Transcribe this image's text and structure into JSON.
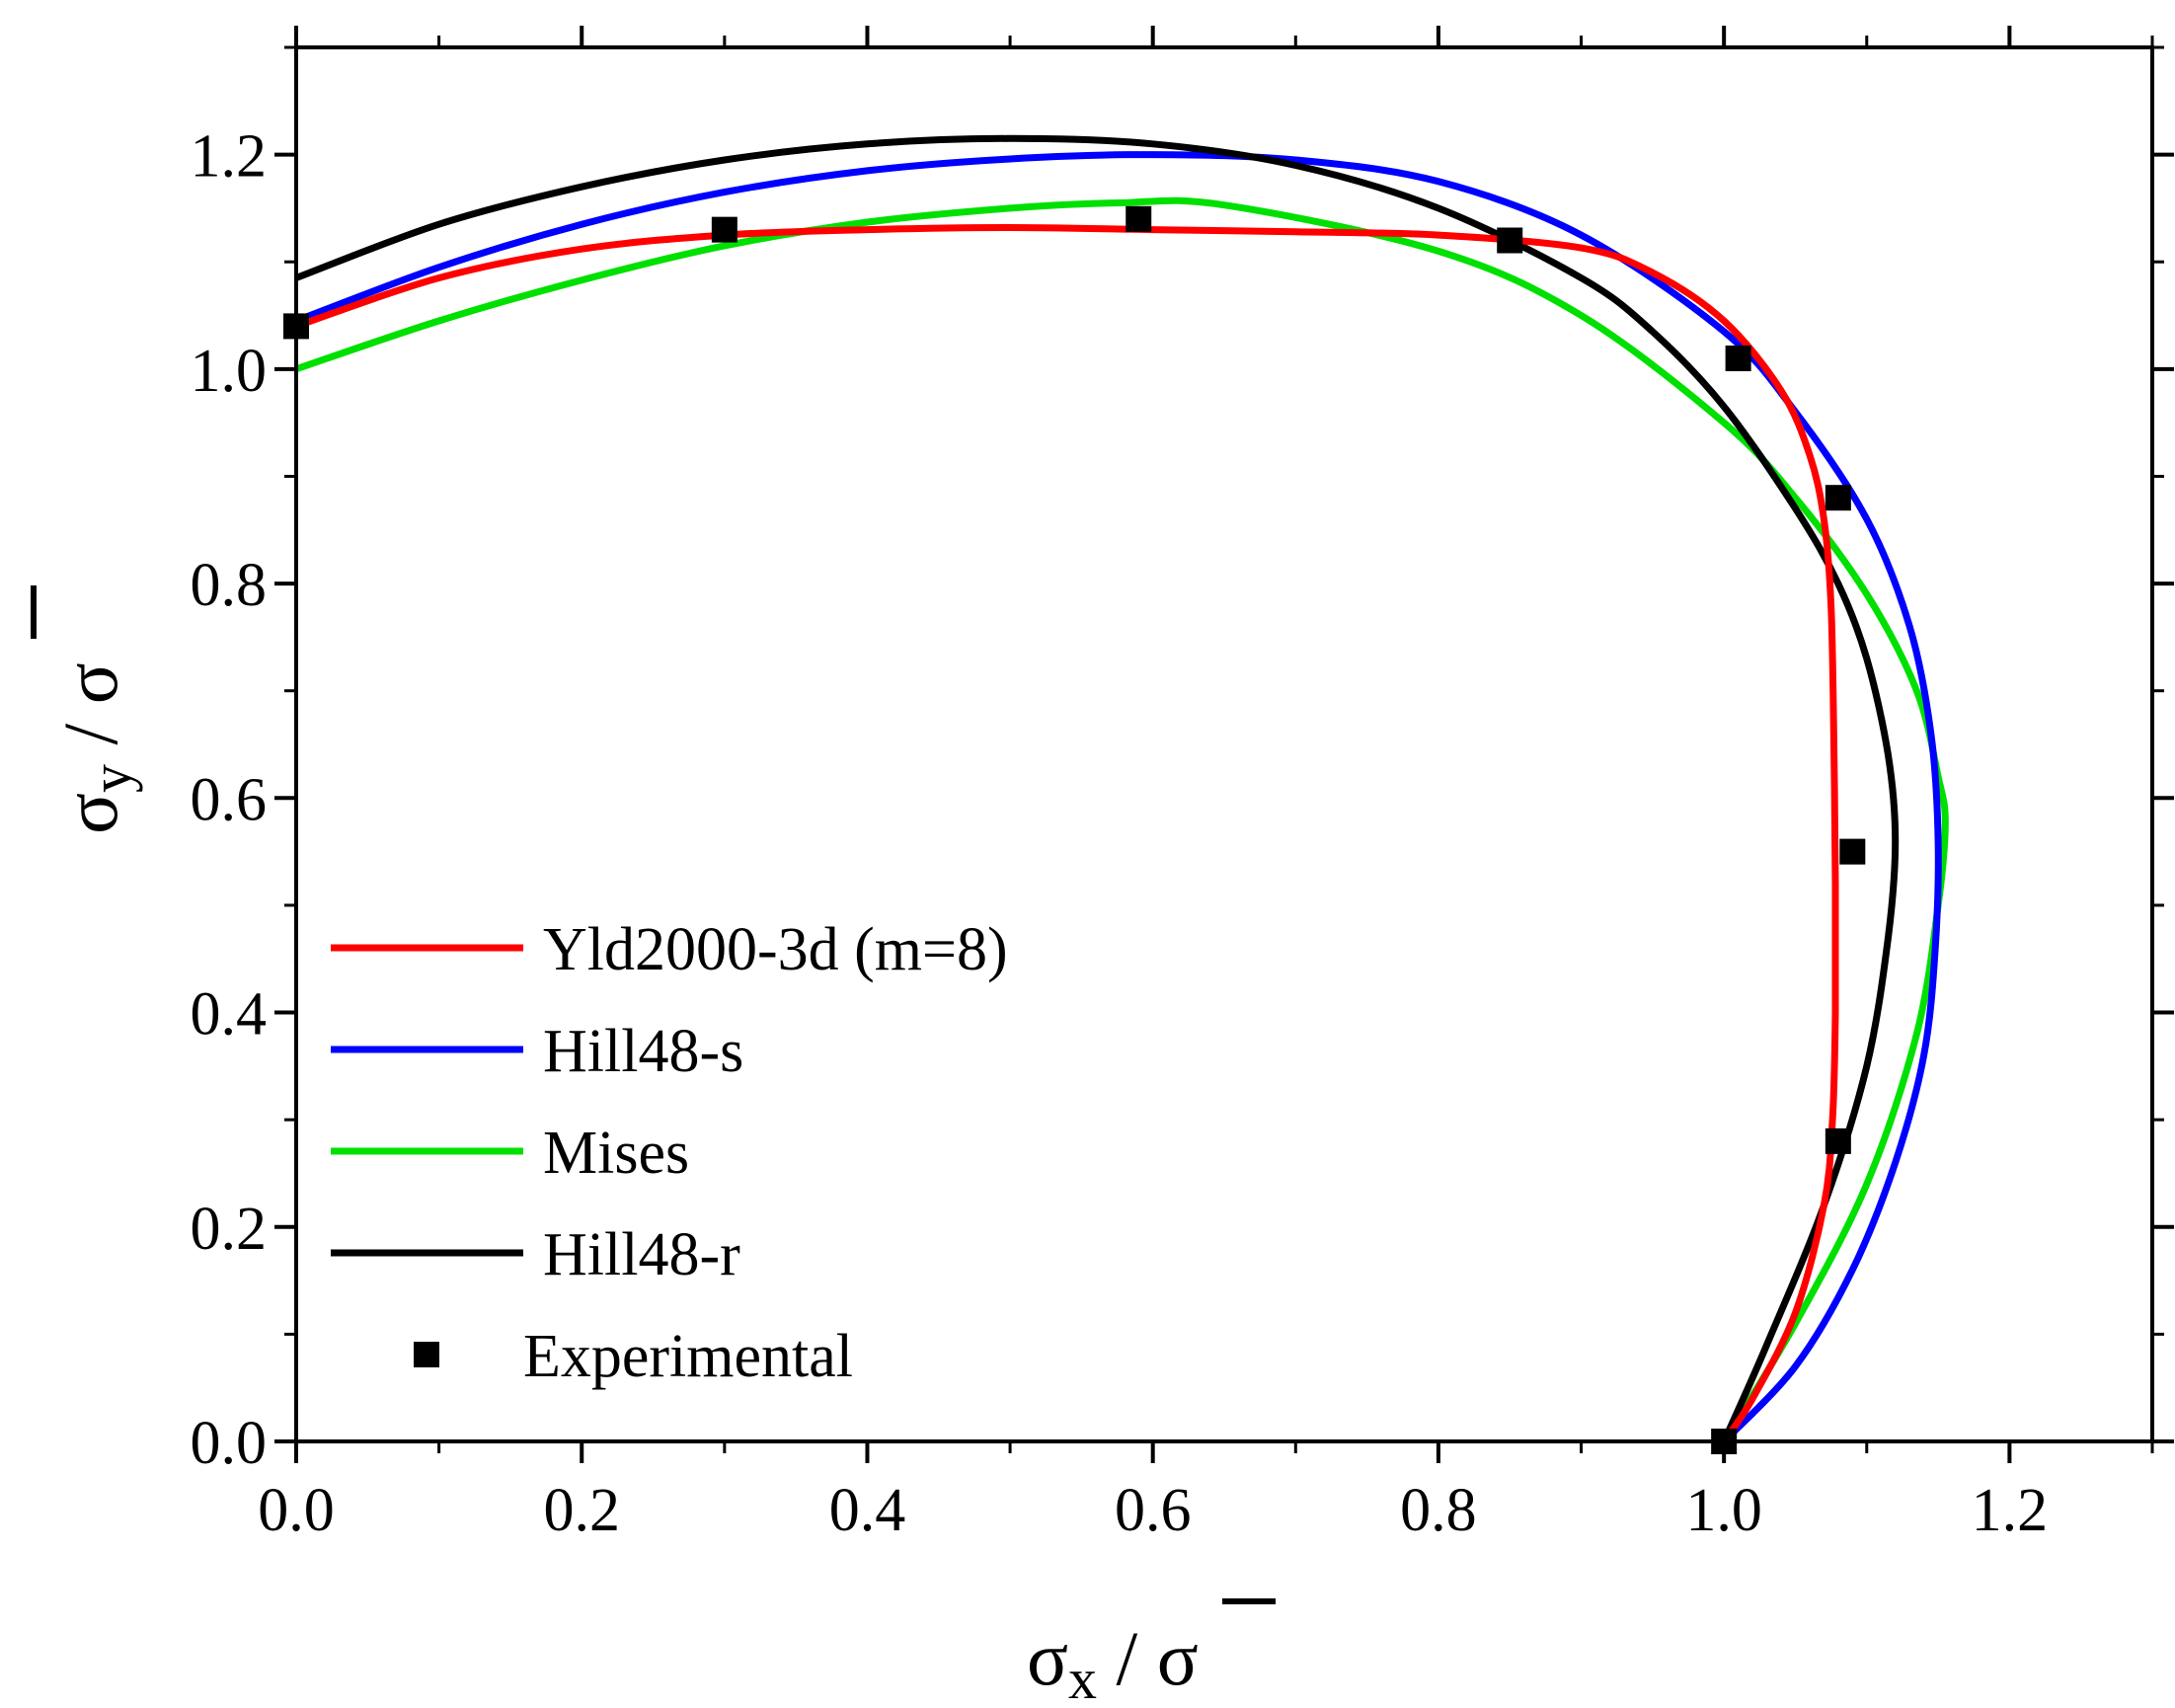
{
  "chart_data": {
    "type": "line",
    "title": "",
    "xlabel": "σx / σ̄",
    "ylabel": "σy / σ̄",
    "xlabel_parts": {
      "base": "σ",
      "sub": "x",
      "sep": " / ",
      "bar": "σ"
    },
    "ylabel_parts": {
      "base": "σ",
      "sub": "y",
      "sep": " / ",
      "bar": "σ"
    },
    "xlim": [
      0.0,
      1.3
    ],
    "ylim": [
      0.0,
      1.3
    ],
    "xticks": [
      0.0,
      0.2,
      0.4,
      0.6,
      0.8,
      1.0,
      1.2
    ],
    "xtick_labels": [
      "0.0",
      "0.2",
      "0.4",
      "0.6",
      "0.8",
      "1.0",
      "1.2"
    ],
    "yticks": [
      0.0,
      0.2,
      0.4,
      0.6,
      0.8,
      1.0,
      1.2
    ],
    "ytick_labels": [
      "0.0",
      "0.2",
      "0.4",
      "0.6",
      "0.8",
      "1.0",
      "1.2"
    ],
    "grid": false,
    "legend_position": "bottom-left",
    "series": [
      {
        "name": "Yld2000-3d (m=8)",
        "color": "#ff0000",
        "x": [
          0.0,
          0.1,
          0.2,
          0.3,
          0.4,
          0.5,
          0.6,
          0.7,
          0.8,
          0.9,
          0.95,
          1.0,
          1.04,
          1.06,
          1.07,
          1.075,
          1.077,
          1.078,
          1.078,
          1.076,
          1.07,
          1.05,
          1.02,
          1.0
        ],
        "y": [
          1.04,
          1.085,
          1.112,
          1.125,
          1.13,
          1.132,
          1.13,
          1.128,
          1.125,
          1.113,
          1.09,
          1.045,
          0.98,
          0.92,
          0.86,
          0.78,
          0.65,
          0.52,
          0.4,
          0.3,
          0.22,
          0.12,
          0.04,
          0.0
        ]
      },
      {
        "name": "Hill48-s",
        "color": "#0000ff",
        "x": [
          0.0,
          0.1,
          0.2,
          0.3,
          0.4,
          0.5,
          0.6,
          0.7,
          0.8,
          0.9,
          1.0,
          1.05,
          1.1,
          1.13,
          1.145,
          1.15,
          1.148,
          1.14,
          1.12,
          1.09,
          1.05,
          1.0
        ],
        "y": [
          1.045,
          1.095,
          1.135,
          1.165,
          1.185,
          1.196,
          1.2,
          1.195,
          1.175,
          1.125,
          1.035,
          0.96,
          0.86,
          0.76,
          0.66,
          0.56,
          0.46,
          0.36,
          0.26,
          0.16,
          0.07,
          0.0
        ]
      },
      {
        "name": "Mises",
        "color": "#00e000",
        "x": [
          0.0,
          0.1,
          0.2,
          0.3,
          0.4,
          0.5,
          0.577,
          0.65,
          0.8,
          0.9,
          1.0,
          1.05,
          1.1,
          1.135,
          1.15,
          1.155,
          1.15,
          1.135,
          1.1,
          1.05,
          1.0
        ],
        "y": [
          1.0,
          1.045,
          1.083,
          1.115,
          1.137,
          1.15,
          1.155,
          1.153,
          1.11,
          1.05,
          0.95,
          0.88,
          0.79,
          0.7,
          0.62,
          0.577,
          0.5,
          0.38,
          0.24,
          0.11,
          0.0
        ]
      },
      {
        "name": "Hill48-r",
        "color": "#000000",
        "x": [
          0.0,
          0.1,
          0.2,
          0.3,
          0.4,
          0.5,
          0.6,
          0.7,
          0.8,
          0.9,
          0.95,
          1.0,
          1.05,
          1.08,
          1.1,
          1.115,
          1.12,
          1.115,
          1.1,
          1.07,
          1.03,
          1.0
        ],
        "y": [
          1.085,
          1.135,
          1.17,
          1.195,
          1.21,
          1.215,
          1.21,
          1.19,
          1.15,
          1.085,
          1.035,
          0.965,
          0.87,
          0.8,
          0.73,
          0.64,
          0.56,
          0.47,
          0.35,
          0.22,
          0.09,
          0.0
        ]
      }
    ],
    "experimental": {
      "name": "Experimental",
      "color": "#000000",
      "marker": "square",
      "x": [
        0.0,
        0.3,
        0.59,
        0.85,
        1.01,
        1.08,
        1.09,
        1.08,
        1.0
      ],
      "y": [
        1.04,
        1.13,
        1.14,
        1.12,
        1.01,
        0.88,
        0.55,
        0.28,
        0.0
      ]
    },
    "legend": [
      "Yld2000-3d (m=8)",
      "Hill48-s",
      "Mises",
      "Hill48-r",
      "Experimental"
    ]
  }
}
